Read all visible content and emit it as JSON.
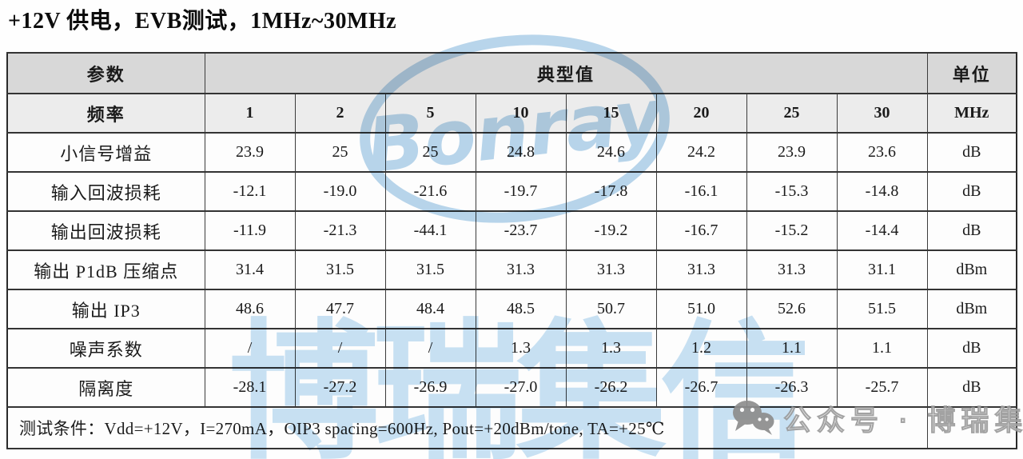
{
  "title": "+12V 供电，EVB测试，1MHz~30MHz",
  "table": {
    "header": {
      "param": "参数",
      "typical": "典型值",
      "unit": "单位"
    },
    "freq_row": {
      "label": "频率",
      "values": [
        "1",
        "2",
        "5",
        "10",
        "15",
        "20",
        "25",
        "30"
      ],
      "unit": "MHz"
    },
    "rows": [
      {
        "label": "小信号增益",
        "values": [
          "23.9",
          "25",
          "25",
          "24.8",
          "24.6",
          "24.2",
          "23.9",
          "23.6"
        ],
        "unit": "dB"
      },
      {
        "label": "输入回波损耗",
        "values": [
          "-12.1",
          "-19.0",
          "-21.6",
          "-19.7",
          "-17.8",
          "-16.1",
          "-15.3",
          "-14.8"
        ],
        "unit": "dB"
      },
      {
        "label": "输出回波损耗",
        "values": [
          "-11.9",
          "-21.3",
          "-44.1",
          "-23.7",
          "-19.2",
          "-16.7",
          "-15.2",
          "-14.4"
        ],
        "unit": "dB"
      },
      {
        "label": "输出 P1dB 压缩点",
        "values": [
          "31.4",
          "31.5",
          "31.5",
          "31.3",
          "31.3",
          "31.3",
          "31.3",
          "31.1"
        ],
        "unit": "dBm"
      },
      {
        "label": "输出 IP3",
        "values": [
          "48.6",
          "47.7",
          "48.4",
          "48.5",
          "50.7",
          "51.0",
          "52.6",
          "51.5"
        ],
        "unit": "dBm"
      },
      {
        "label": "噪声系数",
        "values": [
          "/",
          "/",
          "/",
          "1.3",
          "1.3",
          "1.2",
          "1.1",
          "1.1"
        ],
        "unit": "dB"
      },
      {
        "label": "隔离度",
        "values": [
          "-28.1",
          "-27.2",
          "-26.9",
          "-27.0",
          "-26.2",
          "-26.7",
          "-26.3",
          "-25.7"
        ],
        "unit": "dB"
      }
    ],
    "footer": "测试条件：Vdd=+12V，I=270mA，OIP3 spacing=600Hz, Pout=+20dBm/tone, TA=+25℃"
  },
  "watermark": {
    "logo_text": "Bonray",
    "big_text": "博瑞集信",
    "badge_text": "公众号 · 博瑞集信",
    "blue": "#b9d6ec",
    "big_text_blue": "#c9e2f4",
    "badge_gray": "#8d8d8d"
  },
  "colors": {
    "header_bg": "#d8d8d8",
    "freq_row_bg": "#ececec",
    "cell_bg": "#fdfdfd",
    "border": "#343434"
  }
}
